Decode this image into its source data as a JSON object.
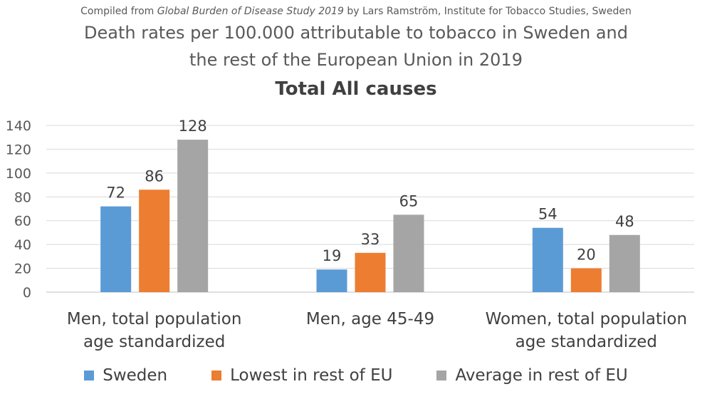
{
  "credit": {
    "prefix": "Compiled from ",
    "source": "Global Burden of Disease Study 2019",
    "suffix": " by Lars Ramström, Institute for Tobacco Studies, Sweden"
  },
  "chart_data": {
    "type": "bar",
    "title_line1": "Death rates per 100.000 attributable to tobacco in Sweden and",
    "title_line2": "the rest of the European Union in 2019",
    "subtitle": "Total All causes",
    "categories": [
      [
        "Men, total population",
        "age standardized"
      ],
      [
        "Men, age 45-49"
      ],
      [
        "Women, total population",
        "age standardized"
      ]
    ],
    "series": [
      {
        "name": "Sweden",
        "color": "#5b9bd5",
        "values": [
          72,
          19,
          54
        ]
      },
      {
        "name": "Lowest in rest of EU",
        "color": "#ed7d31",
        "values": [
          86,
          33,
          20
        ]
      },
      {
        "name": "Average in rest of EU",
        "color": "#a5a5a5",
        "values": [
          128,
          65,
          48
        ]
      }
    ],
    "yticks": [
      0,
      20,
      40,
      60,
      80,
      100,
      120,
      140
    ],
    "ylim": [
      0,
      140
    ],
    "xlabel": "",
    "ylabel": "",
    "grid": true,
    "legend_position": "bottom"
  }
}
